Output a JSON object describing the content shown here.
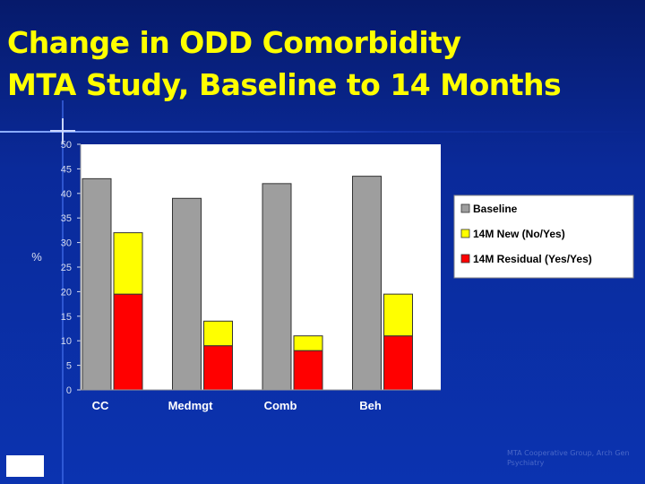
{
  "slide": {
    "title_line1": "Change in ODD Comorbidity",
    "title_line2": "MTA Study, Baseline to 14 Months",
    "footnote": "MTA Cooperative Group, Arch Gen Psychiatry",
    "colors": {
      "title": "#ffff00",
      "background": "#0a2a9a"
    }
  },
  "chart_data": {
    "type": "bar",
    "title": "",
    "xlabel": "",
    "ylabel": "%",
    "ylim": [
      0,
      50
    ],
    "yticks": [
      0,
      5,
      10,
      15,
      20,
      25,
      30,
      35,
      40,
      45,
      50
    ],
    "categories": [
      "CC",
      "Medmgt",
      "Comb",
      "Beh"
    ],
    "series": [
      {
        "name": "Baseline",
        "color": "#9e9e9e",
        "stack": "baseline",
        "values": [
          43,
          39,
          42,
          43.5
        ]
      },
      {
        "name": "14M Residual (Yes/Yes)",
        "color": "#ff0000",
        "stack": "14m",
        "values": [
          19.5,
          9,
          8,
          11
        ]
      },
      {
        "name": "14M New (No/Yes)",
        "color": "#ffff00",
        "stack": "14m",
        "values": [
          12.5,
          5,
          3,
          8.5
        ]
      }
    ],
    "legend": [
      "Baseline",
      "14M New (No/Yes)",
      "14M Residual (Yes/Yes)"
    ],
    "legend_position": "right",
    "grid": false
  }
}
